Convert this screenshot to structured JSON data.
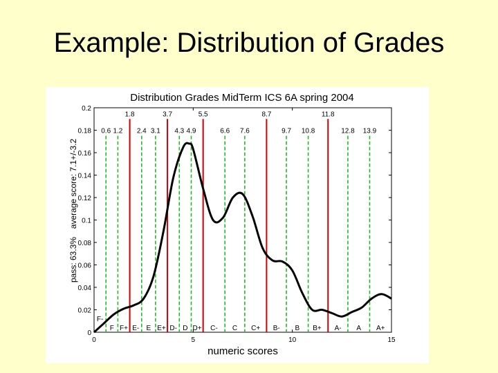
{
  "slide": {
    "title": "Example: Distribution of Grades"
  },
  "chart_data": {
    "type": "line",
    "title": "Distribution Grades MidTerm ICS 6A spring 2004",
    "xlabel": "numeric scores",
    "ylabel_line1": "pass: 63.3%",
    "ylabel_line2": "average score: 7.1+/-3.2",
    "xlim": [
      0,
      15
    ],
    "ylim": [
      0,
      0.2
    ],
    "x_ticks": [
      0,
      5,
      10,
      15
    ],
    "y_ticks": [
      0,
      0.02,
      0.04,
      0.06,
      0.08,
      0.1,
      0.12,
      0.14,
      0.16,
      0.18,
      0.2
    ],
    "y_tick_labels": [
      "0",
      "0.02",
      "0.04",
      "0.06",
      "0.08",
      "0.1",
      "0.12",
      "0.14",
      "0.16",
      "0.18",
      "0.2"
    ],
    "grid": false,
    "colors": {
      "curve": "#000000",
      "red_lines": "#cc0000",
      "green_lines": "#22bb22",
      "text": "#000000"
    },
    "series": [
      {
        "x": [
          0,
          0.5,
          1,
          1.5,
          2,
          2.5,
          3,
          3.5,
          4,
          4.5,
          4.8,
          5,
          5.5,
          6,
          6.5,
          7,
          7.5,
          8,
          8.5,
          9,
          9.5,
          10,
          10.5,
          11,
          11.5,
          12,
          12.5,
          13,
          13.5,
          14,
          14.5,
          15
        ],
        "y": [
          0.0,
          0.008,
          0.016,
          0.021,
          0.024,
          0.03,
          0.05,
          0.09,
          0.138,
          0.165,
          0.168,
          0.163,
          0.128,
          0.1,
          0.102,
          0.12,
          0.123,
          0.103,
          0.075,
          0.064,
          0.063,
          0.055,
          0.035,
          0.02,
          0.02,
          0.017,
          0.014,
          0.018,
          0.022,
          0.03,
          0.034,
          0.03
        ]
      }
    ],
    "boundaries": [
      {
        "value": 1.8,
        "label": "1.8",
        "color": "red"
      },
      {
        "value": 3.7,
        "label": "3.7",
        "color": "red"
      },
      {
        "value": 5.5,
        "label": "5.5",
        "color": "red"
      },
      {
        "value": 8.7,
        "label": "8.7",
        "color": "red"
      },
      {
        "value": 11.8,
        "label": "11.8",
        "color": "red"
      },
      {
        "value": 0.6,
        "label": "0.6",
        "color": "green"
      },
      {
        "value": 1.2,
        "label": "1.2",
        "color": "green"
      },
      {
        "value": 2.4,
        "label": "2.4",
        "color": "green"
      },
      {
        "value": 3.1,
        "label": "3.1",
        "color": "green"
      },
      {
        "value": 4.3,
        "label": "4.3",
        "color": "green"
      },
      {
        "value": 4.9,
        "label": "4.9",
        "color": "green"
      },
      {
        "value": 6.6,
        "label": "6.6",
        "color": "green"
      },
      {
        "value": 7.6,
        "label": "7.6",
        "color": "green"
      },
      {
        "value": 9.7,
        "label": "9.7",
        "color": "green"
      },
      {
        "value": 10.8,
        "label": "10.8",
        "color": "green"
      },
      {
        "value": 12.8,
        "label": "12.8",
        "color": "green"
      },
      {
        "value": 13.9,
        "label": "13.9",
        "color": "green"
      }
    ],
    "grades": [
      {
        "label": "F-",
        "x": 0.3
      },
      {
        "label": "F",
        "x": 0.9
      },
      {
        "label": "F+",
        "x": 1.5
      },
      {
        "label": "E-",
        "x": 2.1
      },
      {
        "label": "E",
        "x": 2.75
      },
      {
        "label": "E+",
        "x": 3.4
      },
      {
        "label": "D-",
        "x": 4.0
      },
      {
        "label": "D",
        "x": 4.6
      },
      {
        "label": "D+",
        "x": 5.2
      },
      {
        "label": "C-",
        "x": 6.05
      },
      {
        "label": "C",
        "x": 7.1
      },
      {
        "label": "C+",
        "x": 8.15
      },
      {
        "label": "B-",
        "x": 9.2
      },
      {
        "label": "B",
        "x": 10.25
      },
      {
        "label": "B+",
        "x": 11.25
      },
      {
        "label": "A-",
        "x": 12.3
      },
      {
        "label": "A",
        "x": 13.35
      },
      {
        "label": "A+",
        "x": 14.45
      }
    ]
  }
}
